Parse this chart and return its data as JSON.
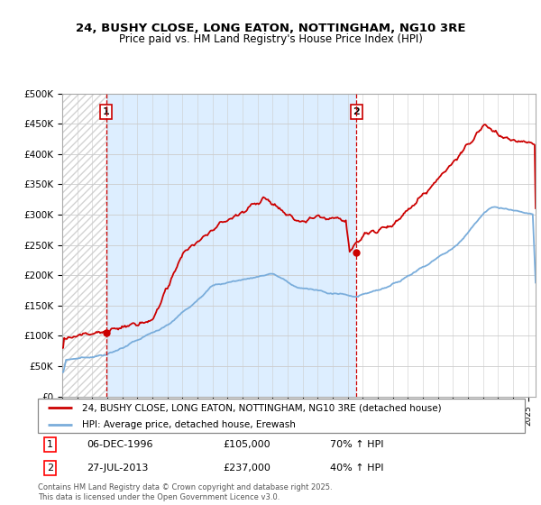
{
  "title_line1": "24, BUSHY CLOSE, LONG EATON, NOTTINGHAM, NG10 3RE",
  "title_line2": "Price paid vs. HM Land Registry's House Price Index (HPI)",
  "legend_label_red": "24, BUSHY CLOSE, LONG EATON, NOTTINGHAM, NG10 3RE (detached house)",
  "legend_label_blue": "HPI: Average price, detached house, Erewash",
  "annotation1_date": "06-DEC-1996",
  "annotation1_price": "£105,000",
  "annotation1_hpi": "70% ↑ HPI",
  "annotation2_date": "27-JUL-2013",
  "annotation2_price": "£237,000",
  "annotation2_hpi": "40% ↑ HPI",
  "footer": "Contains HM Land Registry data © Crown copyright and database right 2025.\nThis data is licensed under the Open Government Licence v3.0.",
  "sale1_year": 1996.92,
  "sale1_value": 105000,
  "sale2_year": 2013.57,
  "sale2_value": 237000,
  "red_color": "#cc0000",
  "blue_color": "#7aaddb",
  "bg_between_color": "#ddeeff",
  "ylim_max": 500000,
  "ylim_min": 0,
  "xmin": 1994.0,
  "xmax": 2025.5
}
